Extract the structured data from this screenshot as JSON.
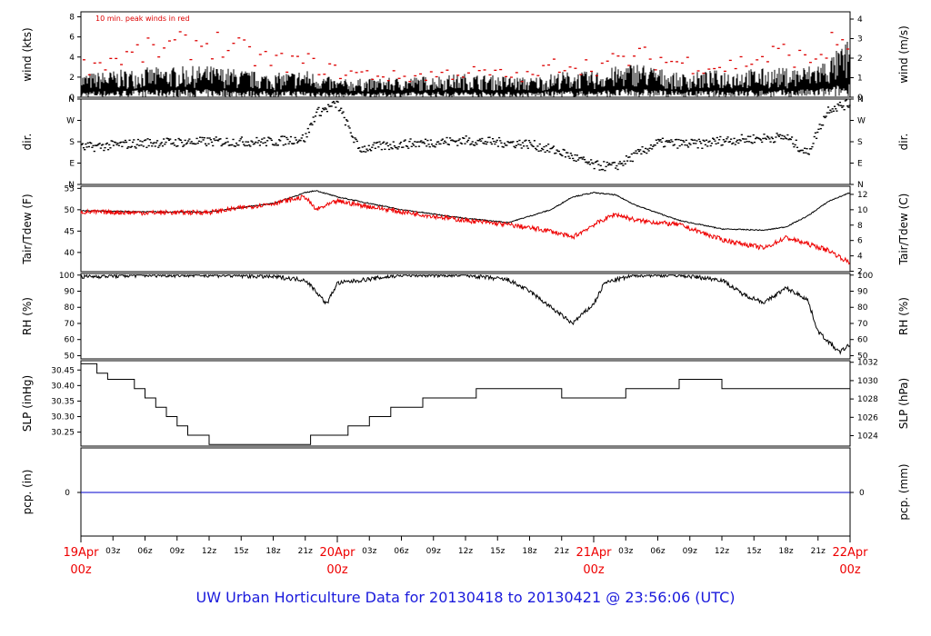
{
  "caption": "UW Urban Horticulture Data for 20130418  to  20130421 @ 23:56:06  (UTC)",
  "colors": {
    "series_black": "#000000",
    "peak_red": "#dd0000",
    "dewpoint_red": "#ee0000",
    "precip_blue": "#0000cc",
    "time_label_red": "#ee0000",
    "caption_blue": "#1a1adc"
  },
  "chart_data": [
    {
      "type": "line",
      "title": "10 min. peak winds in red",
      "ylabel": "wind (kts)",
      "ylabel_right": "wind (m/s)",
      "ylim": [
        0,
        8.5
      ],
      "yticks": [
        0,
        2,
        4,
        6,
        8
      ],
      "yticks_right": [
        0,
        1,
        2,
        3,
        4
      ],
      "x_hours": [
        0,
        6,
        12,
        18,
        21,
        24,
        30,
        36,
        42,
        45,
        48,
        52,
        56,
        60,
        66,
        68,
        70,
        72
      ],
      "series": [
        {
          "values": [
            1.2,
            1.5,
            1.6,
            1.2,
            1.4,
            0.9,
            1.0,
            1.2,
            1.0,
            1.3,
            1.3,
            1.8,
            1.2,
            1.4,
            1.5,
            1.6,
            2.0,
            3.0
          ]
        },
        {
          "values": [
            3.0,
            4.5,
            5.5,
            3.5,
            3.5,
            2.5,
            2.0,
            2.5,
            2.0,
            3.5,
            3.0,
            4.0,
            3.5,
            3.0,
            4.5,
            3.5,
            5.0,
            6.0
          ]
        }
      ]
    },
    {
      "type": "scatter",
      "ylabel": "dir.",
      "ylabel_right": "dir.",
      "yticks": [
        "N",
        "E",
        "S",
        "W",
        "N"
      ],
      "x_hours": [
        0,
        6,
        12,
        18,
        21,
        22,
        24,
        26,
        30,
        36,
        42,
        45,
        48,
        50,
        54,
        58,
        60,
        66,
        68,
        70,
        72
      ],
      "series": [
        {
          "values": [
            155,
            175,
            180,
            180,
            195,
            300,
            340,
            150,
            170,
            185,
            170,
            135,
            80,
            75,
            175,
            170,
            185,
            200,
            130,
            320,
            340
          ]
        }
      ]
    },
    {
      "type": "line",
      "ylabel": "Tair/Tdew (F)",
      "ylabel_right": "Tair/Tdew (C)",
      "ylim": [
        35.5,
        55.5
      ],
      "yticks": [
        40,
        45,
        50,
        55
      ],
      "yticks_right": [
        2,
        4,
        6,
        8,
        10,
        12
      ],
      "x_hours": [
        0,
        6,
        12,
        18,
        21,
        22,
        24,
        30,
        36,
        40,
        44,
        46,
        48,
        50,
        52,
        56,
        60,
        64,
        66,
        68,
        70,
        72
      ],
      "series": [
        {
          "values": [
            49.8,
            49.5,
            49.5,
            51.5,
            54,
            54.5,
            53,
            50,
            48,
            47,
            50,
            53,
            54,
            53.5,
            51,
            47.5,
            45.5,
            45.2,
            46,
            48.5,
            52,
            54
          ]
        },
        {
          "values": [
            49.5,
            49.3,
            49.4,
            51.5,
            53,
            50,
            52,
            49.5,
            47.5,
            46.5,
            45,
            43.5,
            46.5,
            49,
            47.5,
            46.5,
            43,
            41,
            43.5,
            42,
            40.5,
            37.5
          ]
        }
      ]
    },
    {
      "type": "line",
      "ylabel": "RH (%)",
      "ylabel_right": "RH (%)",
      "ylim": [
        48,
        101
      ],
      "yticks": [
        50,
        60,
        70,
        80,
        90,
        100
      ],
      "yticks_right": [
        50,
        60,
        70,
        80,
        90,
        100
      ],
      "x_hours": [
        0,
        6,
        12,
        18,
        21,
        22,
        23,
        24,
        30,
        36,
        40,
        42,
        44,
        46,
        48,
        49,
        50,
        52,
        56,
        60,
        62,
        64,
        66,
        68,
        69,
        71,
        72
      ],
      "series": [
        {
          "values": [
            99,
            100,
            100,
            99,
            97,
            90,
            82,
            95,
            100,
            100,
            97,
            90,
            80,
            70,
            82,
            95,
            97,
            100,
            100,
            97,
            88,
            83,
            92,
            85,
            65,
            52,
            57
          ]
        }
      ]
    },
    {
      "type": "line",
      "ylabel": "SLP (inHg)",
      "ylabel_right": "SLP (hPa)",
      "ylim": [
        30.205,
        30.48
      ],
      "yticks": [
        30.25,
        30.3,
        30.35,
        30.4,
        30.45
      ],
      "yticks_right": [
        1024,
        1026,
        1028,
        1030,
        1032
      ],
      "x_hours": [
        0,
        1.5,
        2.5,
        5,
        6,
        7,
        8,
        9,
        10,
        11,
        12,
        13,
        21.5,
        25,
        27,
        29,
        30,
        32,
        33,
        35,
        36,
        37,
        39,
        43,
        45,
        46,
        46.5,
        48,
        51,
        56,
        60,
        61,
        64,
        72
      ],
      "series": [
        {
          "values": [
            30.47,
            30.44,
            30.42,
            30.39,
            30.36,
            30.33,
            30.3,
            30.27,
            30.24,
            30.24,
            30.21,
            30.21,
            30.24,
            30.27,
            30.3,
            30.33,
            30.33,
            30.36,
            30.36,
            30.36,
            30.36,
            30.39,
            30.39,
            30.39,
            30.36,
            30.36,
            30.36,
            30.36,
            30.39,
            30.42,
            30.39,
            30.39,
            30.39,
            30.39
          ]
        }
      ]
    },
    {
      "type": "line",
      "ylabel": "pcp. (in)",
      "ylabel_right": "pcp. (mm)",
      "yticks": [
        0
      ],
      "yticks_right": [
        0
      ],
      "x_hours": [
        0,
        72
      ],
      "series": [
        {
          "values": [
            0,
            0
          ]
        }
      ]
    }
  ],
  "time_axis": {
    "hour_ticks": [
      {
        "h": 3,
        "label": "03z"
      },
      {
        "h": 6,
        "label": "06z"
      },
      {
        "h": 9,
        "label": "09z"
      },
      {
        "h": 12,
        "label": "12z"
      },
      {
        "h": 15,
        "label": "15z"
      },
      {
        "h": 18,
        "label": "18z"
      },
      {
        "h": 21,
        "label": "21z"
      },
      {
        "h": 27,
        "label": "03z"
      },
      {
        "h": 30,
        "label": "06z"
      },
      {
        "h": 33,
        "label": "09z"
      },
      {
        "h": 36,
        "label": "12z"
      },
      {
        "h": 39,
        "label": "15z"
      },
      {
        "h": 42,
        "label": "18z"
      },
      {
        "h": 45,
        "label": "21z"
      },
      {
        "h": 51,
        "label": "03z"
      },
      {
        "h": 54,
        "label": "06z"
      },
      {
        "h": 57,
        "label": "09z"
      },
      {
        "h": 60,
        "label": "12z"
      },
      {
        "h": 63,
        "label": "15z"
      },
      {
        "h": 66,
        "label": "18z"
      },
      {
        "h": 69,
        "label": "21z"
      }
    ],
    "day_ticks": [
      {
        "h": 0,
        "date": "19Apr",
        "hour": "00z"
      },
      {
        "h": 24,
        "date": "20Apr",
        "hour": "00z"
      },
      {
        "h": 48,
        "date": "21Apr",
        "hour": "00z"
      },
      {
        "h": 72,
        "date": "22Apr",
        "hour": "00z"
      }
    ]
  }
}
